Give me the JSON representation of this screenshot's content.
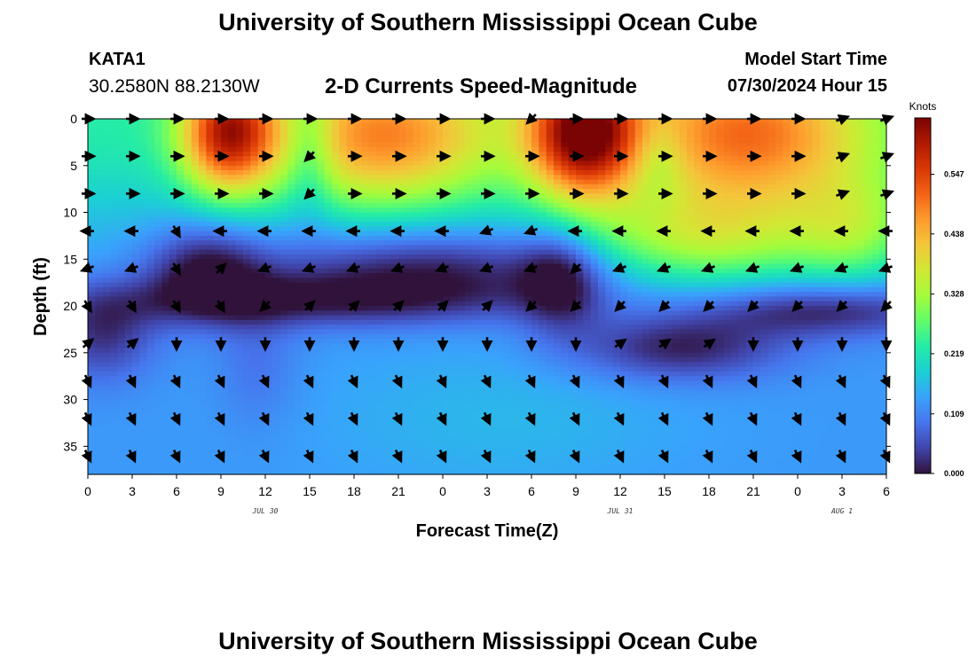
{
  "header": {
    "title": "University of Southern Mississippi Ocean Cube",
    "station": "KATA1",
    "coordinates": "30.2580N  88.2130W",
    "subtitle": "2-D Currents Speed-Magnitude",
    "start_label": "Model Start Time",
    "start_value": "07/30/2024 Hour 15"
  },
  "footer": {
    "title": "University of Southern Mississippi Ocean Cube"
  },
  "chart_data": {
    "type": "heatmap",
    "xlabel": "Forecast Time(Z)",
    "ylabel": "Depth (ft)",
    "x_tick_labels": [
      "0",
      "3",
      "6",
      "9",
      "12",
      "15",
      "18",
      "21",
      "0",
      "3",
      "6",
      "9",
      "12",
      "15",
      "18",
      "21",
      "0",
      "3",
      "6"
    ],
    "x_hours": [
      0,
      3,
      6,
      9,
      12,
      15,
      18,
      21,
      24,
      27,
      30,
      33,
      36,
      39,
      42,
      45,
      48,
      51,
      54
    ],
    "date_labels": [
      {
        "label": "JUL 30",
        "hour": 12
      },
      {
        "label": "JUL 31",
        "hour": 36
      },
      {
        "label": "AUG 1",
        "hour": 51
      }
    ],
    "y_ticks": [
      0,
      5,
      10,
      15,
      20,
      25,
      30,
      35
    ],
    "ylim": [
      0,
      38
    ],
    "xlim": [
      0,
      54
    ],
    "colorbar": {
      "unit": "Knots",
      "ticks": [
        "0.000",
        "0.109",
        "0.219",
        "0.328",
        "0.438",
        "0.547"
      ],
      "tick_values": [
        0,
        0.109,
        0.219,
        0.328,
        0.438,
        0.547
      ],
      "range": [
        0,
        0.65
      ],
      "colormap": [
        "#30123b",
        "#4145ab",
        "#4675ed",
        "#39a2fc",
        "#1bcfd4",
        "#24eca6",
        "#61fc6c",
        "#a4fc3b",
        "#d1e834",
        "#f3c63a",
        "#fe9b2d",
        "#f36315",
        "#d93806",
        "#b11901",
        "#7a0403"
      ]
    },
    "arrow_columns_hours": [
      0,
      3,
      6,
      9,
      12,
      15,
      18,
      21,
      24,
      27,
      30,
      33,
      36,
      39,
      42,
      45,
      48,
      51,
      54
    ],
    "arrow_rows_depth": [
      0,
      4,
      8,
      12,
      16,
      20,
      24,
      28,
      32,
      36
    ]
  }
}
